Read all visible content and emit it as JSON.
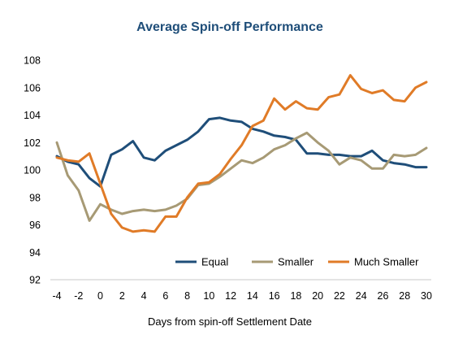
{
  "chart_data": {
    "type": "line",
    "title": "Average Spin-off Performance",
    "xlabel": "Days from spin-off Settlement Date",
    "ylabel": "",
    "x": [
      -4,
      -3,
      -2,
      -1,
      0,
      1,
      2,
      3,
      4,
      5,
      6,
      7,
      8,
      9,
      10,
      11,
      12,
      13,
      14,
      15,
      16,
      17,
      18,
      19,
      20,
      21,
      22,
      23,
      24,
      25,
      26,
      27,
      28,
      29,
      30
    ],
    "xlim": [
      -4,
      30
    ],
    "ylim": [
      92,
      108
    ],
    "xticks": [
      -4,
      -2,
      0,
      2,
      4,
      6,
      8,
      10,
      12,
      14,
      16,
      18,
      20,
      22,
      24,
      26,
      28,
      30
    ],
    "yticks": [
      92,
      94,
      96,
      98,
      100,
      102,
      104,
      106,
      108
    ],
    "grid": false,
    "legend_position": "bottom-right",
    "series": [
      {
        "name": "Equal",
        "color": "#1f4e79",
        "values": [
          101.0,
          100.6,
          100.4,
          99.4,
          98.8,
          101.1,
          101.5,
          102.1,
          100.9,
          100.7,
          101.4,
          101.8,
          102.2,
          102.8,
          103.7,
          103.8,
          103.6,
          103.5,
          103.0,
          102.8,
          102.5,
          102.4,
          102.2,
          101.2,
          101.2,
          101.1,
          101.1,
          101.0,
          101.0,
          101.4,
          100.7,
          100.5,
          100.4,
          100.2,
          100.2
        ]
      },
      {
        "name": "Smaller",
        "color": "#a79a75",
        "values": [
          102.0,
          99.6,
          98.5,
          96.3,
          97.5,
          97.1,
          96.8,
          97.0,
          97.1,
          97.0,
          97.1,
          97.4,
          97.9,
          98.9,
          99.0,
          99.5,
          100.1,
          100.7,
          100.5,
          100.9,
          101.5,
          101.8,
          102.3,
          102.7,
          102.0,
          101.4,
          100.4,
          100.9,
          100.7,
          100.1,
          100.1,
          101.1,
          101.0,
          101.1,
          101.6
        ]
      },
      {
        "name": "Much Smaller",
        "color": "#e07b27",
        "values": [
          100.9,
          100.7,
          100.6,
          101.2,
          99.0,
          96.8,
          95.8,
          95.5,
          95.6,
          95.5,
          96.6,
          96.6,
          98.0,
          99.0,
          99.1,
          99.7,
          100.8,
          101.8,
          103.2,
          103.6,
          105.2,
          104.4,
          105.0,
          104.5,
          104.4,
          105.3,
          105.5,
          106.9,
          105.9,
          105.6,
          105.8,
          105.1,
          105.0,
          106.0,
          106.4
        ]
      }
    ],
    "colors": {
      "title": "#1f4e79",
      "axis": "#c8c8c8",
      "text": "#000000"
    }
  }
}
